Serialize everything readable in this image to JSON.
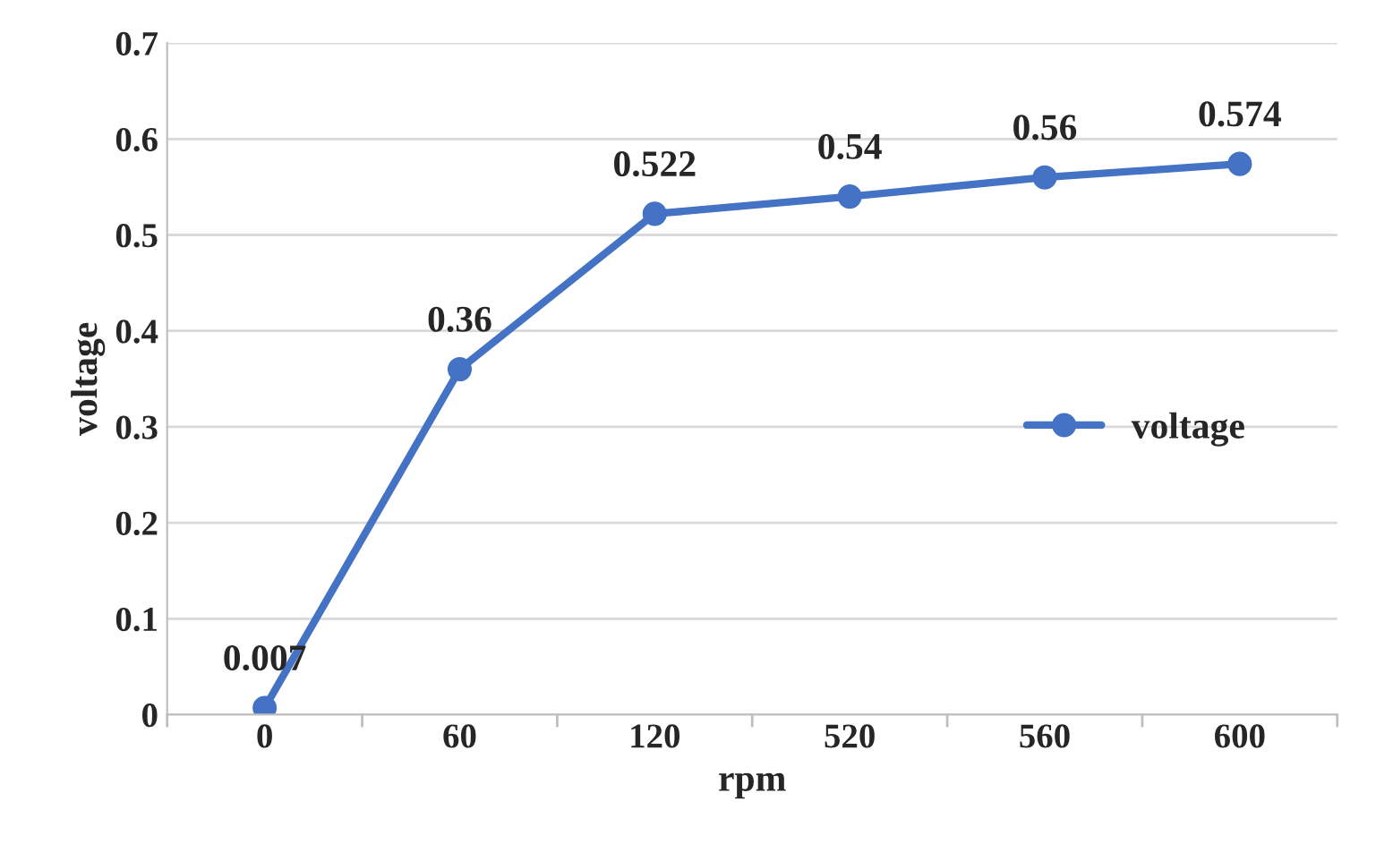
{
  "chart_data": {
    "type": "line",
    "xlabel": "rpm",
    "ylabel": "voltage",
    "categories": [
      "0",
      "60",
      "120",
      "520",
      "560",
      "600"
    ],
    "series": [
      {
        "name": "voltage",
        "color": "#4472c4",
        "values": [
          0.007,
          0.36,
          0.522,
          0.54,
          0.56,
          0.574
        ]
      }
    ],
    "ylim": [
      0,
      0.7
    ],
    "yticks": [
      0,
      0.1,
      0.2,
      0.3,
      0.4,
      0.5,
      0.6,
      0.7
    ],
    "grid": "y",
    "legend": "center right",
    "marker": "circle",
    "line_style": "solid",
    "data_labels": true
  }
}
